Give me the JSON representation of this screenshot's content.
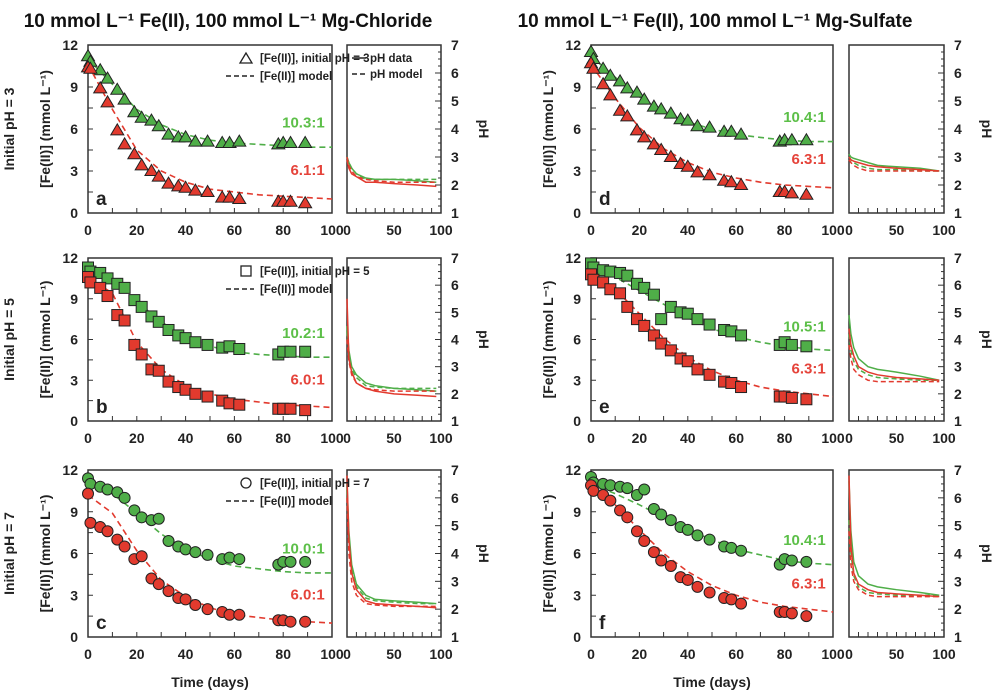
{
  "colors": {
    "green": "#4fae48",
    "red": "#e23a2e",
    "green_label": "#5cbf48",
    "red_label": "#e5433a",
    "marker_edge": "#222222"
  },
  "titles": [
    "10 mmol L⁻¹ Fe(II), 100 mmol L⁻¹ Mg-Chloride",
    "10 mmol L⁻¹ Fe(II), 100 mmol L⁻¹ Mg-Sulfate"
  ],
  "row_labels": [
    "Initial pH = 3",
    "Initial pH = 5",
    "Initial pH = 7"
  ],
  "xlabel": "Time (days)",
  "ylabel": "[Fe(II)] (mmol L⁻¹)",
  "ph_ylabel": "pH",
  "ph_legend": {
    "data": "pH data",
    "model": "pH model"
  },
  "chart_data": {
    "type": "scatter",
    "main_xlim": [
      0,
      100
    ],
    "main_xticks": [
      "0",
      "20",
      "40",
      "60",
      "80",
      "100"
    ],
    "main_ylim": [
      0,
      12
    ],
    "main_yticks": [
      "0",
      "3",
      "6",
      "9",
      "12"
    ],
    "ph_xlim": [
      0,
      100
    ],
    "ph_xticks": [
      "0",
      "50",
      "100"
    ],
    "ph_ylim": [
      1,
      7
    ],
    "ph_yticks": [
      "1",
      "2",
      "3",
      "4",
      "5",
      "6",
      "7"
    ],
    "time": [
      0,
      1,
      5,
      8,
      12,
      15,
      19,
      22,
      26,
      29,
      33,
      37,
      40,
      44,
      49,
      55,
      58,
      62,
      78,
      80,
      83,
      89
    ],
    "model_time": [
      0,
      10,
      20,
      30,
      40,
      50,
      60,
      70,
      80,
      90,
      100
    ],
    "ph_time": [
      0,
      2,
      5,
      10,
      20,
      30,
      50,
      75,
      95
    ],
    "panels": [
      {
        "letter": "a",
        "marker": "triangle",
        "legend": {
          "data": "[Fe(II)], initial pH = 3",
          "model": "[Fe(II)] model"
        },
        "green": {
          "ratio": "10.3:1",
          "values": [
            11.2,
            10.8,
            10.2,
            9.6,
            8.8,
            8.1,
            7.2,
            6.8,
            6.6,
            6.2,
            5.6,
            5.4,
            5.4,
            5.1,
            5.1,
            5.0,
            5.0,
            5.1,
            4.9,
            5.0,
            5.0,
            5.0
          ],
          "model": [
            11.0,
            9.2,
            7.4,
            6.3,
            5.6,
            5.2,
            5.0,
            4.9,
            4.8,
            4.7,
            4.7
          ],
          "ph_data": [
            3.0,
            2.8,
            2.6,
            2.4,
            2.25,
            2.2,
            2.2,
            2.15,
            2.1
          ],
          "ph_model": [
            3.0,
            2.8,
            2.6,
            2.4,
            2.2,
            2.2,
            2.2,
            2.2,
            2.2
          ]
        },
        "red": {
          "ratio": "6.1:1",
          "values": [
            10.4,
            10.3,
            8.9,
            7.9,
            5.9,
            4.9,
            4.2,
            3.4,
            3.0,
            2.6,
            2.1,
            1.9,
            1.8,
            1.6,
            1.5,
            1.1,
            1.1,
            1.0,
            0.8,
            0.8,
            0.8,
            0.7
          ],
          "model": [
            10.6,
            7.4,
            4.5,
            3.0,
            2.2,
            1.7,
            1.5,
            1.3,
            1.2,
            1.1,
            1.0
          ],
          "ph_data": [
            2.9,
            2.6,
            2.4,
            2.3,
            2.1,
            2.1,
            2.05,
            2.0,
            1.95
          ],
          "ph_model": [
            3.0,
            2.7,
            2.5,
            2.3,
            2.2,
            2.15,
            2.1,
            2.1,
            2.1
          ]
        }
      },
      {
        "letter": "b",
        "marker": "square",
        "legend": {
          "data": "[Fe(II)], initial pH = 5",
          "model": "[Fe(II)] model"
        },
        "green": {
          "ratio": "10.2:1",
          "values": [
            11.3,
            11.0,
            10.9,
            10.5,
            10.1,
            9.8,
            8.9,
            8.4,
            7.7,
            7.3,
            6.7,
            6.3,
            6.1,
            5.8,
            5.6,
            5.4,
            5.5,
            5.3,
            4.9,
            5.1,
            5.1,
            5.1
          ],
          "model": [
            11.2,
            10.3,
            8.8,
            7.3,
            6.2,
            5.5,
            5.1,
            4.9,
            4.8,
            4.7,
            4.7
          ],
          "ph_data": [
            4.5,
            3.6,
            3.0,
            2.7,
            2.4,
            2.3,
            2.2,
            2.15,
            2.1
          ],
          "ph_model": [
            4.3,
            3.4,
            2.9,
            2.6,
            2.3,
            2.25,
            2.2,
            2.2,
            2.2
          ]
        },
        "red": {
          "ratio": "6.0:1",
          "values": [
            10.6,
            10.2,
            9.8,
            9.2,
            7.8,
            7.4,
            5.6,
            4.9,
            3.8,
            3.7,
            2.9,
            2.5,
            2.3,
            2.0,
            1.8,
            1.5,
            1.3,
            1.2,
            0.9,
            0.9,
            0.9,
            0.8
          ],
          "model": [
            10.6,
            9.4,
            5.8,
            3.8,
            2.6,
            2.0,
            1.6,
            1.4,
            1.2,
            1.1,
            1.0
          ],
          "ph_data": [
            5.5,
            3.3,
            2.8,
            2.4,
            2.2,
            2.1,
            2.0,
            1.95,
            1.9
          ],
          "ph_model": [
            4.0,
            3.2,
            2.7,
            2.4,
            2.2,
            2.15,
            2.1,
            2.1,
            2.1
          ]
        }
      },
      {
        "letter": "c",
        "marker": "circle",
        "legend": {
          "data": "[Fe(II)], initial pH = 7",
          "model": "[Fe(II)] model"
        },
        "green": {
          "ratio": "10.0:1",
          "values": [
            11.4,
            11.0,
            10.8,
            10.6,
            10.4,
            10.0,
            9.1,
            8.6,
            8.4,
            8.5,
            6.9,
            6.5,
            6.3,
            6.1,
            5.9,
            5.6,
            5.7,
            5.6,
            5.2,
            5.4,
            5.4,
            5.4
          ],
          "model": [
            10.8,
            10.3,
            8.9,
            7.4,
            6.3,
            5.6,
            5.1,
            4.9,
            4.7,
            4.6,
            4.6
          ],
          "ph_data": [
            6.5,
            4.8,
            3.6,
            2.9,
            2.5,
            2.35,
            2.3,
            2.25,
            2.2
          ],
          "ph_model": [
            6.3,
            4.5,
            3.4,
            2.8,
            2.4,
            2.3,
            2.25,
            2.2,
            2.2
          ]
        },
        "red": {
          "ratio": "6.0:1",
          "values": [
            10.3,
            8.2,
            7.9,
            7.6,
            7.0,
            6.5,
            5.6,
            5.8,
            4.2,
            3.8,
            3.3,
            2.8,
            2.7,
            2.3,
            2.0,
            1.8,
            1.6,
            1.6,
            1.2,
            1.2,
            1.1,
            1.1
          ],
          "model": [
            10.2,
            8.9,
            6.2,
            4.1,
            2.9,
            2.1,
            1.6,
            1.4,
            1.2,
            1.1,
            1.0
          ],
          "ph_data": [
            6.8,
            4.5,
            3.3,
            2.7,
            2.3,
            2.2,
            2.15,
            2.1,
            2.05
          ],
          "ph_model": [
            6.0,
            4.0,
            3.0,
            2.5,
            2.2,
            2.15,
            2.1,
            2.1,
            2.1
          ]
        }
      },
      {
        "letter": "d",
        "marker": "triangle",
        "green": {
          "ratio": "10.4:1",
          "values": [
            11.5,
            11.0,
            10.3,
            9.8,
            9.4,
            8.9,
            8.6,
            8.1,
            7.6,
            7.4,
            7.1,
            6.7,
            6.6,
            6.2,
            6.1,
            5.8,
            5.8,
            5.6,
            5.1,
            5.2,
            5.2,
            5.2
          ],
          "model": [
            11.2,
            9.7,
            8.3,
            7.2,
            6.5,
            6.0,
            5.6,
            5.4,
            5.2,
            5.1,
            5.1
          ],
          "ph_data": [
            3.1,
            3.0,
            2.95,
            2.9,
            2.8,
            2.7,
            2.65,
            2.6,
            2.5
          ],
          "ph_model": [
            3.0,
            2.9,
            2.8,
            2.7,
            2.6,
            2.55,
            2.55,
            2.5,
            2.5
          ]
        },
        "red": {
          "ratio": "6.3:1",
          "values": [
            10.7,
            10.3,
            9.2,
            8.4,
            7.3,
            6.9,
            5.9,
            5.4,
            4.9,
            4.5,
            4.0,
            3.5,
            3.3,
            2.9,
            2.7,
            2.3,
            2.2,
            2.0,
            1.5,
            1.5,
            1.4,
            1.3
          ],
          "model": [
            10.6,
            8.2,
            6.1,
            4.6,
            3.6,
            2.9,
            2.5,
            2.2,
            2.0,
            1.9,
            1.8
          ],
          "ph_data": [
            3.0,
            2.9,
            2.85,
            2.8,
            2.7,
            2.65,
            2.6,
            2.55,
            2.5
          ],
          "ph_model": [
            2.9,
            2.8,
            2.7,
            2.6,
            2.5,
            2.5,
            2.5,
            2.5,
            2.5
          ]
        }
      },
      {
        "letter": "e",
        "marker": "square",
        "green": {
          "ratio": "10.5:1",
          "values": [
            11.6,
            11.3,
            11.1,
            11.0,
            10.9,
            10.7,
            10.1,
            9.8,
            9.3,
            7.5,
            8.4,
            8.0,
            7.9,
            7.5,
            7.1,
            6.7,
            6.6,
            6.3,
            5.6,
            5.8,
            5.6,
            5.5
          ],
          "model": [
            11.2,
            10.6,
            9.6,
            8.6,
            7.6,
            6.8,
            6.2,
            5.8,
            5.5,
            5.3,
            5.2
          ],
          "ph_data": [
            4.9,
            4.2,
            3.7,
            3.3,
            3.0,
            2.9,
            2.8,
            2.65,
            2.5
          ],
          "ph_model": [
            4.2,
            3.6,
            3.2,
            2.9,
            2.7,
            2.6,
            2.55,
            2.5,
            2.5
          ]
        },
        "red": {
          "ratio": "6.3:1",
          "values": [
            10.8,
            10.4,
            10.2,
            9.7,
            9.4,
            8.4,
            7.5,
            7.0,
            6.3,
            5.7,
            5.2,
            4.6,
            4.4,
            3.8,
            3.4,
            2.9,
            2.8,
            2.5,
            1.8,
            1.8,
            1.7,
            1.6
          ],
          "model": [
            10.8,
            9.7,
            7.9,
            6.1,
            4.7,
            3.7,
            3.0,
            2.5,
            2.2,
            2.0,
            1.8
          ],
          "ph_data": [
            4.4,
            3.8,
            3.4,
            3.0,
            2.8,
            2.7,
            2.6,
            2.55,
            2.5
          ],
          "ph_model": [
            3.8,
            3.3,
            2.9,
            2.7,
            2.5,
            2.45,
            2.45,
            2.45,
            2.45
          ]
        }
      },
      {
        "letter": "f",
        "marker": "circle",
        "green": {
          "ratio": "10.4:1",
          "values": [
            11.5,
            11.1,
            11.0,
            10.9,
            10.8,
            10.7,
            10.2,
            10.6,
            9.2,
            8.8,
            8.4,
            7.9,
            7.7,
            7.3,
            7.0,
            6.5,
            6.4,
            6.2,
            5.2,
            5.6,
            5.5,
            5.4
          ],
          "model": [
            11.0,
            10.3,
            9.5,
            8.6,
            7.7,
            7.0,
            6.3,
            5.9,
            5.5,
            5.3,
            5.2
          ],
          "ph_data": [
            6.6,
            4.8,
            3.7,
            3.2,
            2.9,
            2.8,
            2.7,
            2.6,
            2.5
          ],
          "ph_model": [
            5.2,
            4.0,
            3.2,
            2.8,
            2.6,
            2.55,
            2.5,
            2.5,
            2.5
          ]
        },
        "red": {
          "ratio": "6.3:1",
          "values": [
            10.9,
            10.5,
            10.2,
            9.8,
            9.1,
            8.6,
            7.6,
            6.9,
            6.1,
            5.5,
            5.1,
            4.3,
            4.1,
            3.6,
            3.2,
            2.8,
            2.7,
            2.4,
            1.8,
            1.8,
            1.7,
            1.5
          ],
          "model": [
            10.8,
            9.5,
            7.7,
            6.0,
            4.7,
            3.7,
            3.0,
            2.5,
            2.2,
            2.0,
            1.8
          ],
          "ph_data": [
            6.8,
            4.3,
            3.3,
            2.9,
            2.7,
            2.6,
            2.55,
            2.5,
            2.45
          ],
          "ph_model": [
            4.8,
            3.6,
            3.0,
            2.7,
            2.5,
            2.45,
            2.45,
            2.45,
            2.45
          ]
        }
      }
    ]
  }
}
